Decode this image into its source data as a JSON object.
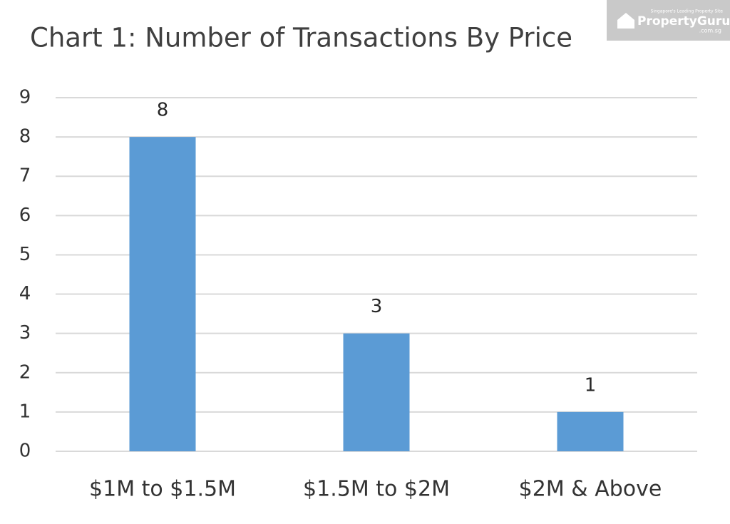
{
  "chart_data": {
    "type": "bar",
    "title": "Chart 1: Number of Transactions By Price",
    "categories": [
      "$1M to $1.5M",
      "$1.5M to $2M",
      "$2M & Above"
    ],
    "values": [
      8,
      3,
      1
    ],
    "color": "#5b9bd5",
    "ylim": [
      0,
      9
    ],
    "yticks": [
      0,
      1,
      2,
      3,
      4,
      5,
      6,
      7,
      8,
      9
    ],
    "grid": true,
    "data_labels": true
  },
  "watermark": {
    "tagline": "Singapore's Leading Property Site",
    "brand": "PropertyGuru",
    "domain": ".com.sg"
  }
}
